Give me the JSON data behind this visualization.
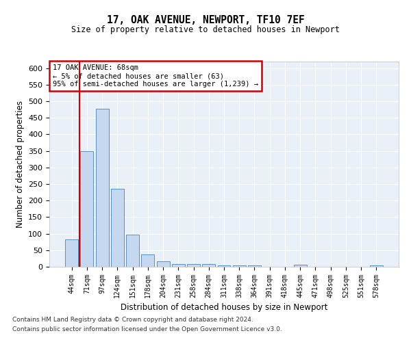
{
  "title": "17, OAK AVENUE, NEWPORT, TF10 7EF",
  "subtitle": "Size of property relative to detached houses in Newport",
  "xlabel": "Distribution of detached houses by size in Newport",
  "ylabel": "Number of detached properties",
  "categories": [
    "44sqm",
    "71sqm",
    "97sqm",
    "124sqm",
    "151sqm",
    "178sqm",
    "204sqm",
    "231sqm",
    "258sqm",
    "284sqm",
    "311sqm",
    "338sqm",
    "364sqm",
    "391sqm",
    "418sqm",
    "445sqm",
    "471sqm",
    "498sqm",
    "525sqm",
    "551sqm",
    "578sqm"
  ],
  "values": [
    83,
    350,
    478,
    235,
    97,
    37,
    17,
    8,
    8,
    8,
    5,
    5,
    5,
    0,
    0,
    6,
    0,
    0,
    0,
    0,
    5
  ],
  "bar_color": "#c5d8f0",
  "bar_edge_color": "#5a8fc2",
  "vline_color": "#cc0000",
  "vline_x_index": 1,
  "annotation_line1": "17 OAK AVENUE: 68sqm",
  "annotation_line2": "← 5% of detached houses are smaller (63)",
  "annotation_line3": "95% of semi-detached houses are larger (1,239) →",
  "annotation_box_color": "#cc0000",
  "ylim": [
    0,
    620
  ],
  "yticks": [
    0,
    50,
    100,
    150,
    200,
    250,
    300,
    350,
    400,
    450,
    500,
    550,
    600
  ],
  "bg_color": "#eaf0f8",
  "grid_color": "#ffffff",
  "footer1": "Contains HM Land Registry data © Crown copyright and database right 2024.",
  "footer2": "Contains public sector information licensed under the Open Government Licence v3.0."
}
